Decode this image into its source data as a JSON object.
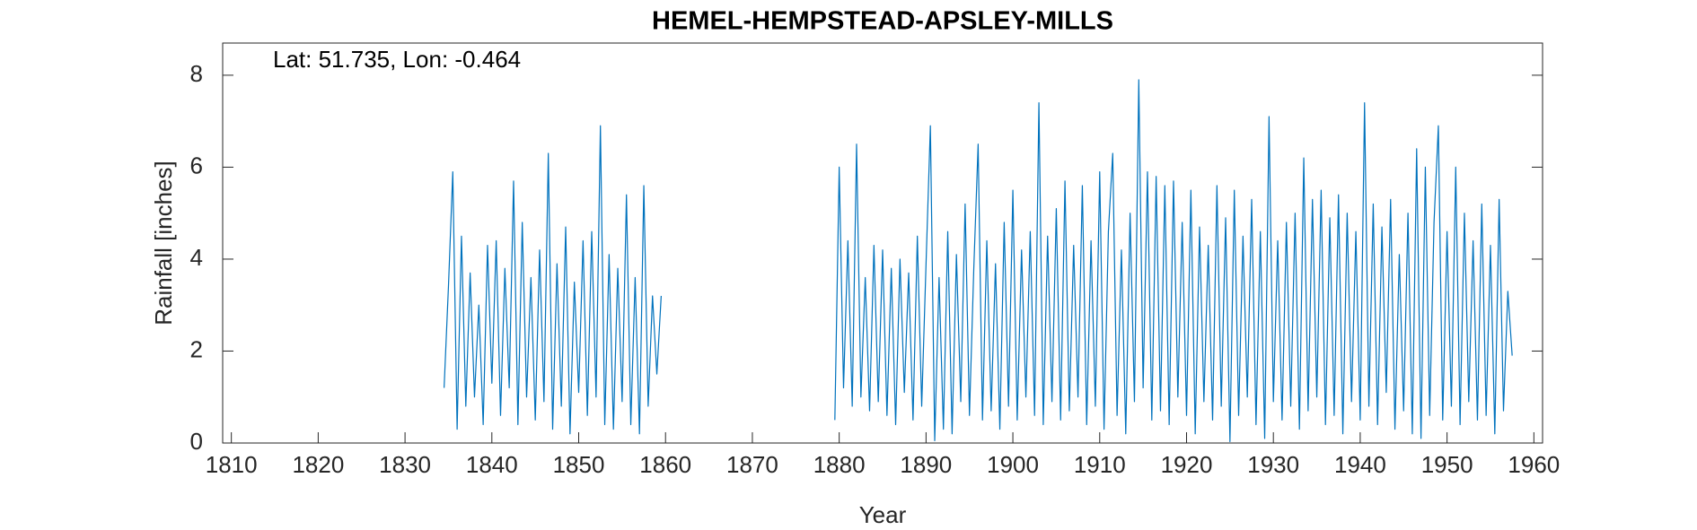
{
  "chart_data": {
    "type": "line",
    "title": "HEMEL-HEMPSTEAD-APSLEY-MILLS",
    "annotation": "Lat: 51.735, Lon: -0.464",
    "xlabel": "Year",
    "ylabel": "Rainfall [inches]",
    "xlim": [
      1809,
      1961
    ],
    "xticks": [
      1810,
      1820,
      1830,
      1840,
      1850,
      1860,
      1870,
      1880,
      1890,
      1900,
      1910,
      1920,
      1930,
      1940,
      1950,
      1960
    ],
    "ylim": [
      0,
      8.7
    ],
    "yticks": [
      0,
      2,
      4,
      6,
      8
    ],
    "grid": false,
    "series": [
      {
        "name": "Rainfall",
        "color": "#0072bd",
        "x": [
          1834.5,
          1835,
          1835.5,
          1836,
          1836.5,
          1837,
          1837.5,
          1838,
          1838.5,
          1839,
          1839.5,
          1840,
          1840.5,
          1841,
          1841.5,
          1842,
          1842.5,
          1843,
          1843.5,
          1844,
          1844.5,
          1845,
          1845.5,
          1846,
          1846.5,
          1847,
          1847.5,
          1848,
          1848.5,
          1849,
          1849.5,
          1850,
          1850.5,
          1851,
          1851.5,
          1852,
          1852.5,
          1853,
          1853.5,
          1854,
          1854.5,
          1855,
          1855.5,
          1856,
          1856.5,
          1857,
          1857.5,
          1858,
          1858.5,
          1859,
          1859.5,
          1860,
          1879.5,
          1880,
          1880.5,
          1881,
          1881.5,
          1882,
          1882.5,
          1883,
          1883.5,
          1884,
          1884.5,
          1885,
          1885.5,
          1886,
          1886.5,
          1887,
          1887.5,
          1888,
          1888.5,
          1889,
          1889.5,
          1890,
          1890.5,
          1891,
          1891.5,
          1892,
          1892.5,
          1893,
          1893.5,
          1894,
          1894.5,
          1895,
          1895.5,
          1896,
          1896.5,
          1897,
          1897.5,
          1898,
          1898.5,
          1899,
          1899.5,
          1900,
          1900.5,
          1901,
          1901.5,
          1902,
          1902.5,
          1903,
          1903.5,
          1904,
          1904.5,
          1905,
          1905.5,
          1906,
          1906.5,
          1907,
          1907.5,
          1908,
          1908.5,
          1909,
          1909.5,
          1910,
          1910.5,
          1911,
          1911.5,
          1912,
          1912.5,
          1913,
          1913.5,
          1914,
          1914.5,
          1915,
          1915.5,
          1916,
          1916.5,
          1917,
          1917.5,
          1918,
          1918.5,
          1919,
          1919.5,
          1920,
          1920.5,
          1921,
          1921.5,
          1922,
          1922.5,
          1923,
          1923.5,
          1924,
          1924.5,
          1925,
          1925.5,
          1926,
          1926.5,
          1927,
          1927.5,
          1928,
          1928.5,
          1929,
          1929.5,
          1930,
          1930.5,
          1931,
          1931.5,
          1932,
          1932.5,
          1933,
          1933.5,
          1934,
          1934.5,
          1935,
          1935.5,
          1936,
          1936.5,
          1937,
          1937.5,
          1938,
          1938.5,
          1939,
          1939.5,
          1940,
          1940.5,
          1941,
          1941.5,
          1942,
          1942.5,
          1943,
          1943.5,
          1944,
          1944.5,
          1945,
          1945.5,
          1946,
          1946.5,
          1947,
          1947.5,
          1948,
          1948.5,
          1949,
          1949.5,
          1950,
          1950.5,
          1951,
          1951.5,
          1952,
          1952.5,
          1953,
          1953.5,
          1954,
          1954.5,
          1955,
          1955.5,
          1956,
          1956.5,
          1957,
          1957.5
        ],
        "values": [
          1.2,
          3.4,
          5.9,
          0.3,
          4.5,
          0.8,
          3.7,
          1.0,
          3.0,
          0.4,
          4.3,
          1.3,
          4.4,
          0.6,
          3.8,
          1.2,
          5.7,
          0.4,
          4.8,
          1.0,
          3.6,
          0.5,
          4.2,
          0.9,
          6.3,
          0.3,
          3.9,
          0.8,
          4.7,
          0.2,
          3.5,
          1.1,
          4.4,
          0.6,
          4.6,
          1.0,
          6.9,
          0.4,
          4.1,
          0.3,
          3.8,
          0.9,
          5.4,
          0.4,
          3.6,
          0.2,
          5.6,
          0.8,
          3.2,
          1.5,
          3.2,
          null,
          0.5,
          6.0,
          1.2,
          4.4,
          0.8,
          6.5,
          1.0,
          3.6,
          0.7,
          4.3,
          0.9,
          4.2,
          0.6,
          3.8,
          0.4,
          4.0,
          1.1,
          3.7,
          0.5,
          4.5,
          0.8,
          3.9,
          6.9,
          0.05,
          3.6,
          0.3,
          4.6,
          0.2,
          4.1,
          0.9,
          5.2,
          0.6,
          3.8,
          6.5,
          0.5,
          4.4,
          0.7,
          3.9,
          0.3,
          4.8,
          0.8,
          5.5,
          0.5,
          4.2,
          1.0,
          4.6,
          0.6,
          7.4,
          0.4,
          4.5,
          0.9,
          5.1,
          0.5,
          5.7,
          0.7,
          4.3,
          1.0,
          5.6,
          0.4,
          4.4,
          0.8,
          5.9,
          0.3,
          4.6,
          6.3,
          0.6,
          4.2,
          0.2,
          5.0,
          0.9,
          7.9,
          1.2,
          5.9,
          0.5,
          5.8,
          0.7,
          5.6,
          0.4,
          5.7,
          1.0,
          4.8,
          0.6,
          5.5,
          0.2,
          4.7,
          0.9,
          4.3,
          0.5,
          5.6,
          0.8,
          4.9,
          0.03,
          5.5,
          0.6,
          4.5,
          1.0,
          5.3,
          0.4,
          4.6,
          0.1,
          7.1,
          0.9,
          4.4,
          0.5,
          4.8,
          0.8,
          5.0,
          0.3,
          6.2,
          0.7,
          5.3,
          1.0,
          5.5,
          0.4,
          4.9,
          0.6,
          5.4,
          0.2,
          5.0,
          0.9,
          4.6,
          0.5,
          7.4,
          0.8,
          5.2,
          0.4,
          4.7,
          1.1,
          5.3,
          0.3,
          4.1,
          0.7,
          5.0,
          0.2,
          6.4,
          0.1,
          6.0,
          0.6,
          4.8,
          6.9,
          0.5,
          4.6,
          0.8,
          6.0,
          0.4,
          5.0,
          0.9,
          4.4,
          0.5,
          5.2,
          0.6,
          4.3,
          0.2,
          5.3,
          0.7,
          3.3,
          1.9
        ]
      }
    ]
  }
}
